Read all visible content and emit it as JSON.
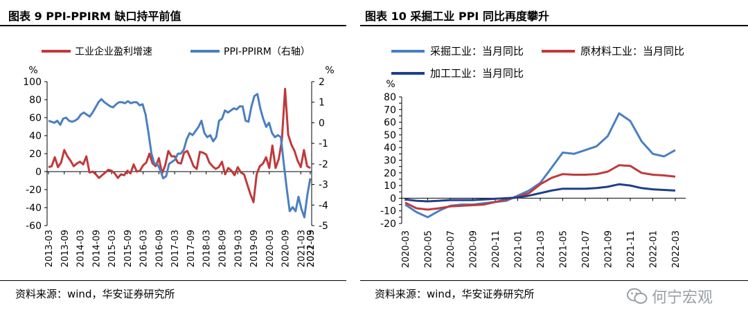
{
  "left": {
    "title": "图表 9 PPI-PPIRM 缺口持平前值",
    "source": "资料来源：wind，华安证券研究所"
  },
  "right": {
    "title": "图表 10  采掘工业 PPI 同比再度攀升",
    "source": "资料来源：wind，华安证券研究所"
  },
  "watermark": {
    "text": "何宁宏观",
    "icon": "wechat-icon"
  },
  "chart_data": [
    {
      "type": "line",
      "title": "图表 9 PPI-PPIRM 缺口持平前值",
      "left_unit": "%",
      "right_unit": "%",
      "ylim": [
        -60,
        100
      ],
      "y_ticks": [
        -60,
        -40,
        -20,
        0,
        20,
        40,
        60,
        80,
        100
      ],
      "y2lim": [
        -5,
        2
      ],
      "y2_ticks": [
        -5,
        -4,
        -3,
        -2,
        -1,
        0,
        1,
        2
      ],
      "x_ticks": [
        "2013-03",
        "2013-09",
        "2014-03",
        "2014-09",
        "2015-03",
        "2015-09",
        "2016-03",
        "2016-09",
        "2017-03",
        "2017-09",
        "2018-03",
        "2018-09",
        "2019-03",
        "2019-09",
        "2020-03",
        "2020-09",
        "2021-03",
        "2021-09",
        "2022-03"
      ],
      "series": [
        {
          "name": "工业企业盈利增速",
          "axis": "left",
          "color": "#c0393b",
          "values": [
            5,
            6,
            16,
            5,
            10,
            24,
            17,
            12,
            6,
            9,
            11,
            8,
            17,
            -1,
            0,
            -3,
            -7,
            -4,
            -1,
            2,
            1,
            -2,
            -7,
            -3,
            -4,
            1,
            -2,
            8,
            0,
            1,
            7,
            10,
            20,
            9,
            6,
            15,
            -2,
            7,
            23,
            17,
            17,
            10,
            9,
            21,
            23,
            15,
            6,
            3,
            22,
            21,
            19,
            10,
            6,
            3,
            5,
            11,
            -3,
            4,
            1,
            -4,
            5,
            -1,
            -3,
            -14,
            -25,
            -34,
            -3,
            6,
            9,
            16,
            4,
            29,
            4,
            14,
            35,
            92,
            41,
            30,
            23,
            12,
            5,
            24,
            6,
            4
          ]
        },
        {
          "name": "PPI-PPIRM（右轴）",
          "axis": "right",
          "color": "#4a7fc1",
          "values": [
            0.1,
            0.05,
            0.0,
            0.1,
            -0.1,
            0.2,
            0.25,
            0.1,
            0.05,
            0.1,
            0.2,
            0.4,
            0.5,
            0.4,
            0.3,
            0.5,
            0.75,
            1.0,
            1.15,
            1.0,
            0.9,
            0.8,
            0.75,
            0.9,
            1.0,
            1.0,
            0.95,
            1.05,
            0.95,
            1.0,
            1.0,
            0.85,
            0.9,
            0.4,
            -0.5,
            -1.5,
            -2.0,
            -2.0,
            -2.3,
            -2.7,
            -2.6,
            -2.0,
            -1.9,
            -1.8,
            -1.5,
            -1.5,
            -1.3,
            -0.8,
            -0.5,
            -0.6,
            -0.4,
            -0.2,
            0.1,
            -0.5,
            -0.7,
            -0.6,
            -0.9,
            -0.7,
            0.1,
            0.2,
            0.6,
            0.5,
            0.6,
            0.7,
            0.65,
            0.8,
            0.8,
            0.1,
            0.05,
            0.8,
            1.3,
            1.4,
            0.7,
            0.2,
            -0.2,
            0.0,
            -0.5,
            -0.7,
            -0.6,
            -0.7,
            -2.0,
            -3.2,
            -4.3,
            -4.1,
            -4.3,
            -3.6,
            -4.2,
            -4.6,
            -3.5,
            -2.7
          ]
        }
      ]
    },
    {
      "type": "line",
      "title": "图表 10  采掘工业 PPI 同比再度攀升",
      "unit": "%",
      "ylim": [
        -20,
        80
      ],
      "y_ticks": [
        -20,
        -15,
        -10,
        -5,
        0,
        5,
        10,
        15,
        20,
        25,
        30,
        35,
        40,
        45,
        50,
        55,
        60,
        65,
        70,
        75,
        80
      ],
      "y_tick_labels": [
        -20,
        -10,
        0,
        10,
        20,
        30,
        40,
        50,
        60,
        70,
        80
      ],
      "x_ticks": [
        "2020-03",
        "2020-05",
        "2020-07",
        "2020-09",
        "2020-11",
        "2021-01",
        "2021-03",
        "2021-05",
        "2021-07",
        "2021-09",
        "2021-11",
        "2022-01",
        "2022-03"
      ],
      "categories": [
        "2020-03",
        "2020-04",
        "2020-05",
        "2020-06",
        "2020-07",
        "2020-08",
        "2020-09",
        "2020-10",
        "2020-11",
        "2020-12",
        "2021-01",
        "2021-02",
        "2021-03",
        "2021-04",
        "2021-05",
        "2021-06",
        "2021-07",
        "2021-08",
        "2021-09",
        "2021-10",
        "2021-11",
        "2021-12",
        "2022-01",
        "2022-02",
        "2022-03"
      ],
      "series": [
        {
          "name": "采掘工业：当月同比",
          "color": "#4a7fc1",
          "values": [
            -5,
            -11,
            -15,
            -10,
            -6,
            -5,
            -5,
            -4,
            -3,
            -2,
            2,
            6,
            12,
            24,
            36,
            35,
            38,
            41,
            49,
            67,
            61,
            45,
            35,
            33,
            38
          ]
        },
        {
          "name": "原材料工业：当月同比",
          "color": "#c0393b",
          "values": [
            -3.5,
            -8,
            -9,
            -8,
            -6.5,
            -6,
            -5.5,
            -5,
            -3,
            -1,
            1,
            4,
            11,
            16,
            19,
            18.5,
            18.5,
            19,
            21,
            26,
            25.5,
            20,
            18.5,
            18,
            17
          ]
        },
        {
          "name": "加工工业：当月同比",
          "color": "#1f3f8a",
          "values": [
            -1,
            -2,
            -2.5,
            -2,
            -1.5,
            -1.5,
            -1.5,
            -1,
            -0.5,
            0,
            0.5,
            2,
            4,
            6,
            7.5,
            7.5,
            7.5,
            8,
            9,
            11,
            10,
            8,
            7,
            6.5,
            6
          ]
        }
      ]
    }
  ]
}
